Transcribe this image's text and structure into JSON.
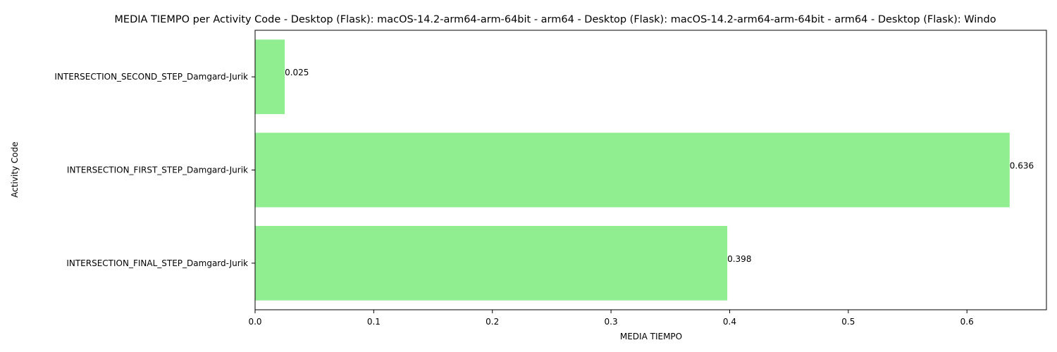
{
  "chart_data": {
    "type": "bar",
    "orientation": "horizontal",
    "title": "MEDIA TIEMPO per Activity Code - Desktop (Flask): macOS-14.2-arm64-arm-64bit - arm64 - Desktop (Flask): macOS-14.2-arm64-arm-64bit - arm64 - Desktop (Flask): Windo",
    "xlabel": "MEDIA TIEMPO",
    "ylabel": "Activity Code",
    "categories": [
      "INTERSECTION_SECOND_STEP_Damgard-Jurik",
      "INTERSECTION_FIRST_STEP_Damgard-Jurik",
      "INTERSECTION_FINAL_STEP_Damgard-Jurik"
    ],
    "values": [
      0.025,
      0.636,
      0.398
    ],
    "value_labels": [
      "0.025",
      "0.636",
      "0.398"
    ],
    "xlim": [
      0,
      0.667
    ],
    "xticks": [
      0,
      0.1,
      0.2,
      0.3,
      0.4,
      0.5,
      0.6
    ],
    "xtick_labels": [
      "0.0",
      "0.1",
      "0.2",
      "0.3",
      "0.4",
      "0.5",
      "0.6"
    ],
    "bar_color": "#90ee90",
    "grid": false,
    "legend": false
  }
}
